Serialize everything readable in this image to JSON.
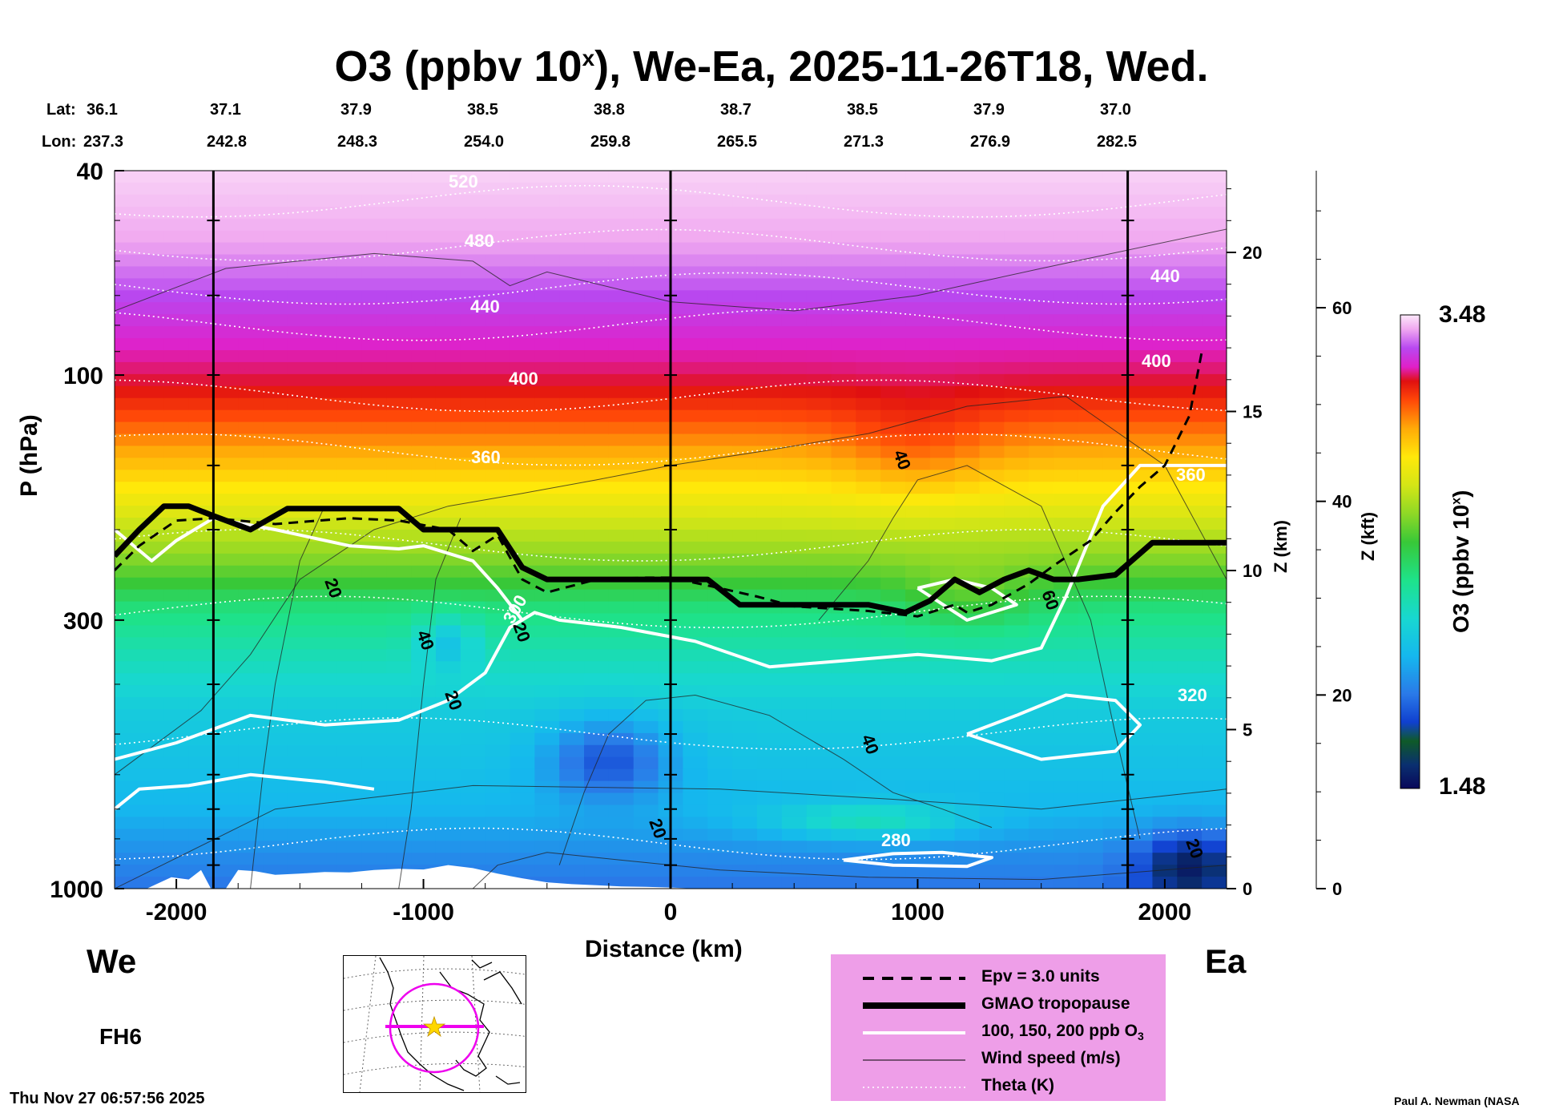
{
  "title": {
    "main": "O3 (ppbv 10",
    "sup": "x",
    "rest": "), We-Ea, 2025-11-26T18, Wed."
  },
  "lat_label": "Lat:",
  "lon_label": "Lon:",
  "lats": [
    "36.1",
    "37.1",
    "37.9",
    "38.5",
    "38.8",
    "38.7",
    "38.5",
    "37.9",
    "37.0"
  ],
  "lons": [
    "237.3",
    "242.8",
    "248.3",
    "254.0",
    "259.8",
    "265.5",
    "271.3",
    "276.9",
    "282.5"
  ],
  "direction_west": "We",
  "direction_east": "Ea",
  "forecast_hour": "FH6",
  "timestamp": "Thu Nov 27 06:57:56 2025",
  "credit": "Paul A. Newman (NASA",
  "colors": {
    "tropopause": "#000000",
    "ozone_contour": "#ffffff",
    "legend_bg": "#ee9ee8",
    "inset_circle": "#ee00ee",
    "inset_star": "#ffd700"
  },
  "chart_data": {
    "type": "heatmap",
    "title": "O3 (ppbv 10^x), We-Ea, 2025-11-26T18, Wed.",
    "xlabel": "Distance (km)",
    "ylabel": "P (hPa)",
    "xlim": [
      -2250,
      2250
    ],
    "ylim": [
      1000,
      40
    ],
    "x_ticks": [
      "-2000",
      "-1000",
      "0",
      "1000",
      "2000"
    ],
    "x_tick_values": [
      -2000,
      -1000,
      0,
      1000,
      2000
    ],
    "y_ticks": [
      "40",
      "100",
      "300",
      "1000"
    ],
    "y_tick_values": [
      40,
      100,
      300,
      1000
    ],
    "z_km_label": "Z (km)",
    "z_km_ticks": [
      "20",
      "15",
      "10",
      "5",
      "0"
    ],
    "z_km_values": [
      20,
      15,
      10,
      5,
      0
    ],
    "z_kft_label": "Z (kft)",
    "z_kft_ticks": [
      "60",
      "40",
      "20",
      "0"
    ],
    "z_kft_values": [
      60,
      40,
      20,
      0
    ],
    "colorbar": {
      "label": "O3 (ppbv 10",
      "label_sup": "x",
      "label_close": ")",
      "min": "1.48",
      "max": "3.48",
      "min_value": 1.48,
      "max_value": 3.48
    },
    "section_markers_km": [
      -1850,
      0,
      1850
    ],
    "ozone_log10_profile": {
      "pressure_hpa": [
        40,
        55,
        70,
        85,
        100,
        130,
        170,
        220,
        280,
        350,
        450,
        550,
        700,
        850,
        1000
      ],
      "log10_o3": [
        3.42,
        3.3,
        3.18,
        3.08,
        3.0,
        2.8,
        2.6,
        2.38,
        2.15,
        2.05,
        1.95,
        1.92,
        1.88,
        1.8,
        1.75
      ]
    },
    "tropopause": {
      "x_km": [
        -2250,
        -2150,
        -2050,
        -1950,
        -1850,
        -1700,
        -1550,
        -1400,
        -1250,
        -1100,
        -1000,
        -900,
        -800,
        -700,
        -600,
        -500,
        -300,
        -100,
        0,
        150,
        280,
        400,
        600,
        800,
        950,
        1050,
        1150,
        1250,
        1350,
        1450,
        1550,
        1650,
        1800,
        1950,
        2100,
        2250
      ],
      "p_hpa": [
        225,
        200,
        180,
        180,
        188,
        200,
        182,
        182,
        182,
        182,
        200,
        200,
        200,
        200,
        237,
        250,
        250,
        250,
        250,
        250,
        280,
        280,
        280,
        280,
        290,
        275,
        250,
        265,
        250,
        240,
        250,
        250,
        245,
        212,
        212,
        212
      ]
    },
    "theta_levels_K": [
      "280",
      "320",
      "360",
      "360",
      "400",
      "400",
      "440",
      "440",
      "480",
      "520"
    ],
    "wind_speed_labels_ms": [
      "20",
      "20",
      "20",
      "20",
      "40",
      "40",
      "40",
      "60",
      "20"
    ],
    "ozone_contour_labels_ppb": [
      "300"
    ],
    "legend": [
      {
        "style": "dashed",
        "label": "Epv = 3.0 units"
      },
      {
        "style": "thick",
        "label": "GMAO tropopause"
      },
      {
        "style": "white",
        "label": "100, 150, 200 ppb O",
        "sub": "3"
      },
      {
        "style": "thin",
        "label": "Wind speed (m/s)"
      },
      {
        "style": "dotted",
        "label": "Theta (K)"
      }
    ]
  }
}
